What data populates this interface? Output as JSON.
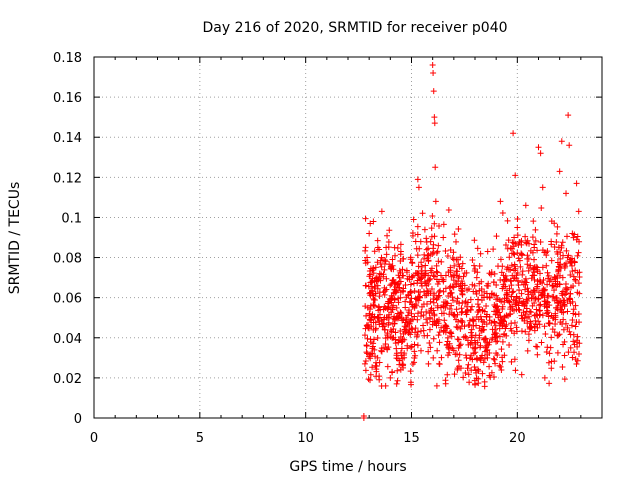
{
  "chart_data": {
    "type": "scatter",
    "title": "Day 216 of 2020, SRMTID for receiver p040",
    "xlabel": "GPS time / hours",
    "ylabel": "SRMTID / TECUs",
    "xlim": [
      0,
      24
    ],
    "ylim": [
      0,
      0.18
    ],
    "x_ticks": [
      0,
      5,
      10,
      15,
      20
    ],
    "y_ticks": [
      0,
      0.02,
      0.04,
      0.06,
      0.08,
      0.1,
      0.12,
      0.14,
      0.16,
      0.18
    ],
    "x_tick_labels": [
      "0",
      "5",
      "10",
      "15",
      "20"
    ],
    "y_tick_labels": [
      "0",
      "0.02",
      "0.04",
      "0.06",
      "0.08",
      "0.1",
      "0.12",
      "0.14",
      "0.16",
      "0.18"
    ],
    "grid": true,
    "marker": "+",
    "color": "#ff0000",
    "series": [
      {
        "name": "SRMTID",
        "points_sample": [
          [
            12.75,
            0.0
          ],
          [
            12.75,
            0.001
          ],
          [
            12.8,
            0.027
          ],
          [
            12.85,
            0.066
          ],
          [
            12.9,
            0.08
          ],
          [
            12.95,
            0.045
          ],
          [
            13.0,
            0.092
          ],
          [
            13.05,
            0.097
          ],
          [
            13.1,
            0.05
          ],
          [
            13.2,
            0.098
          ],
          [
            13.3,
            0.062
          ],
          [
            13.4,
            0.03
          ],
          [
            13.5,
            0.072
          ],
          [
            13.6,
            0.103
          ],
          [
            13.7,
            0.035
          ],
          [
            13.8,
            0.085
          ],
          [
            13.9,
            0.055
          ],
          [
            14.0,
            0.02
          ],
          [
            14.1,
            0.079
          ],
          [
            14.2,
            0.047
          ],
          [
            14.3,
            0.017
          ],
          [
            14.4,
            0.065
          ],
          [
            14.5,
            0.083
          ],
          [
            14.6,
            0.025
          ],
          [
            14.7,
            0.058
          ],
          [
            14.8,
            0.036
          ],
          [
            14.9,
            0.069
          ],
          [
            15.0,
            0.052
          ],
          [
            15.1,
            0.099
          ],
          [
            15.2,
            0.088
          ],
          [
            15.3,
            0.119
          ],
          [
            15.35,
            0.115
          ],
          [
            15.4,
            0.06
          ],
          [
            15.5,
            0.072
          ],
          [
            15.6,
            0.041
          ],
          [
            15.7,
            0.066
          ],
          [
            15.8,
            0.027
          ],
          [
            15.9,
            0.058
          ],
          [
            16.0,
            0.176
          ],
          [
            16.02,
            0.172
          ],
          [
            16.05,
            0.163
          ],
          [
            16.08,
            0.15
          ],
          [
            16.1,
            0.147
          ],
          [
            16.12,
            0.125
          ],
          [
            16.15,
            0.108
          ],
          [
            16.2,
            0.016
          ],
          [
            16.3,
            0.068
          ],
          [
            16.4,
            0.045
          ],
          [
            16.5,
            0.09
          ],
          [
            16.6,
            0.055
          ],
          [
            16.8,
            0.037
          ],
          [
            17.0,
            0.079
          ],
          [
            17.2,
            0.048
          ],
          [
            17.4,
            0.063
          ],
          [
            17.6,
            0.03
          ],
          [
            17.8,
            0.054
          ],
          [
            18.0,
            0.017
          ],
          [
            18.2,
            0.067
          ],
          [
            18.4,
            0.044
          ],
          [
            18.6,
            0.083
          ],
          [
            18.8,
            0.039
          ],
          [
            19.0,
            0.061
          ],
          [
            19.2,
            0.108
          ],
          [
            19.4,
            0.05
          ],
          [
            19.6,
            0.074
          ],
          [
            19.8,
            0.142
          ],
          [
            19.9,
            0.121
          ],
          [
            20.0,
            0.095
          ],
          [
            20.2,
            0.062
          ],
          [
            20.4,
            0.106
          ],
          [
            20.6,
            0.045
          ],
          [
            20.8,
            0.085
          ],
          [
            21.0,
            0.135
          ],
          [
            21.1,
            0.132
          ],
          [
            21.2,
            0.115
          ],
          [
            21.3,
            0.02
          ],
          [
            21.4,
            0.058
          ],
          [
            21.6,
            0.088
          ],
          [
            21.8,
            0.067
          ],
          [
            22.0,
            0.123
          ],
          [
            22.1,
            0.138
          ],
          [
            22.2,
            0.044
          ],
          [
            22.3,
            0.112
          ],
          [
            22.4,
            0.151
          ],
          [
            22.45,
            0.136
          ],
          [
            22.5,
            0.062
          ],
          [
            22.6,
            0.092
          ],
          [
            22.7,
            0.078
          ],
          [
            22.8,
            0.117
          ],
          [
            22.9,
            0.103
          ]
        ]
      }
    ]
  }
}
